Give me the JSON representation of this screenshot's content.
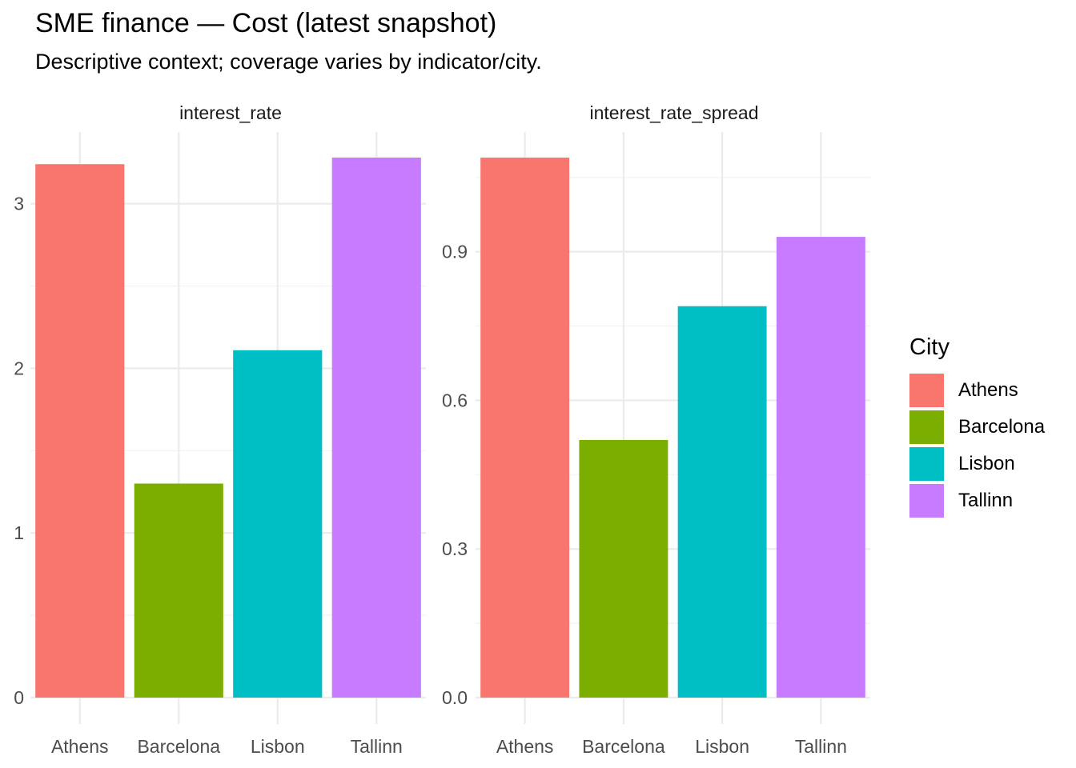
{
  "title": "SME finance — Cost (latest snapshot)",
  "subtitle": "Descriptive context; coverage varies by indicator/city.",
  "legend": {
    "title": "City",
    "position": "right",
    "items": [
      {
        "label": "Athens",
        "color": "#F8766D"
      },
      {
        "label": "Barcelona",
        "color": "#7CAE00"
      },
      {
        "label": "Lisbon",
        "color": "#00BFC4"
      },
      {
        "label": "Tallinn",
        "color": "#C77CFF"
      }
    ]
  },
  "chart_data": [
    {
      "type": "bar",
      "facet": "interest_rate",
      "categories": [
        "Athens",
        "Barcelona",
        "Lisbon",
        "Tallinn"
      ],
      "values": [
        3.24,
        1.3,
        2.11,
        3.28
      ],
      "colors": [
        "#F8766D",
        "#7CAE00",
        "#00BFC4",
        "#C77CFF"
      ],
      "y_ticks": [
        0,
        1,
        2,
        3
      ],
      "y_tick_labels": [
        "0",
        "1",
        "2",
        "3"
      ],
      "ylim": [
        0,
        3.28
      ],
      "grid": true
    },
    {
      "type": "bar",
      "facet": "interest_rate_spread",
      "categories": [
        "Athens",
        "Barcelona",
        "Lisbon",
        "Tallinn"
      ],
      "values": [
        1.09,
        0.52,
        0.79,
        0.93
      ],
      "colors": [
        "#F8766D",
        "#7CAE00",
        "#00BFC4",
        "#C77CFF"
      ],
      "y_ticks": [
        0.0,
        0.3,
        0.6,
        0.9
      ],
      "y_tick_labels": [
        "0.0",
        "0.3",
        "0.6",
        "0.9"
      ],
      "ylim": [
        0,
        1.09
      ],
      "grid": true
    }
  ]
}
